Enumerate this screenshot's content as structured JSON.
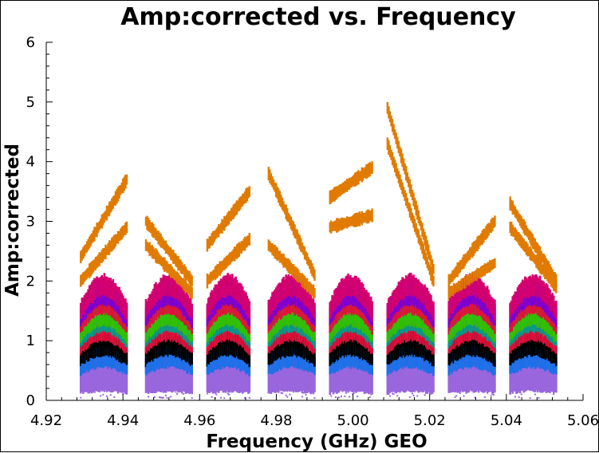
{
  "chart_data": {
    "type": "scatter",
    "title": "Amp:corrected vs. Frequency",
    "xlabel": "Frequency (GHz) GEO",
    "ylabel": "Amp:corrected",
    "xlim": [
      4.92,
      5.06
    ],
    "ylim": [
      0,
      6
    ],
    "x_ticks": [
      "4.92",
      "4.94",
      "4.96",
      "4.98",
      "5.00",
      "5.02",
      "5.04",
      "5.06"
    ],
    "y_ticks": [
      "0",
      "1",
      "2",
      "3",
      "4",
      "5",
      "6"
    ],
    "grid": false,
    "spectral_windows": [
      {
        "x_start": 4.929,
        "x_end": 4.941,
        "upper_start": 2.4,
        "upper_end": 3.7,
        "upper2_start": 2.0,
        "upper2_end": 2.9
      },
      {
        "x_start": 4.946,
        "x_end": 4.958,
        "upper_start": 3.0,
        "upper_end": 2.0,
        "upper2_start": 2.6,
        "upper2_end": 1.8
      },
      {
        "x_start": 4.962,
        "x_end": 4.973,
        "upper_start": 2.6,
        "upper_end": 3.5,
        "upper2_start": 2.0,
        "upper2_end": 2.7
      },
      {
        "x_start": 4.978,
        "x_end": 4.99,
        "upper_start": 3.8,
        "upper_end": 2.1,
        "upper2_start": 2.6,
        "upper2_end": 1.8
      },
      {
        "x_start": 4.994,
        "x_end": 5.005,
        "upper_start": 3.4,
        "upper_end": 3.9,
        "upper2_start": 2.9,
        "upper2_end": 3.1
      },
      {
        "x_start": 5.009,
        "x_end": 5.021,
        "upper_start": 4.9,
        "upper_end": 2.2,
        "upper2_start": 4.3,
        "upper2_end": 2.0
      },
      {
        "x_start": 5.025,
        "x_end": 5.037,
        "upper_start": 2.0,
        "upper_end": 3.0,
        "upper2_start": 1.8,
        "upper2_end": 2.3
      },
      {
        "x_start": 5.041,
        "x_end": 5.053,
        "upper_start": 3.3,
        "upper_end": 2.0,
        "upper2_start": 2.9,
        "upper2_end": 1.9
      }
    ],
    "series_colors": {
      "upper": "#e07b00",
      "magenta": "#d4006e",
      "purple": "#7a00d4",
      "green": "#33c000",
      "teal": "#009c8c",
      "red": "#e0103c",
      "black": "#000000",
      "blue": "#1a70e8",
      "lavender": "#9966dd"
    },
    "bands": [
      {
        "color": "lavender",
        "lo": 0.15,
        "hi": 0.75
      },
      {
        "color": "blue",
        "lo": 0.55,
        "hi": 0.9
      },
      {
        "color": "black",
        "lo": 0.75,
        "hi": 1.15
      },
      {
        "color": "red",
        "lo": 1.0,
        "hi": 1.3
      },
      {
        "color": "teal",
        "lo": 1.15,
        "hi": 1.45
      },
      {
        "color": "green",
        "lo": 1.25,
        "hi": 1.6
      },
      {
        "color": "red",
        "lo": 1.45,
        "hi": 1.75
      },
      {
        "color": "purple",
        "lo": 1.6,
        "hi": 2.0
      },
      {
        "color": "magenta",
        "lo": 1.75,
        "hi": 2.1
      }
    ]
  }
}
